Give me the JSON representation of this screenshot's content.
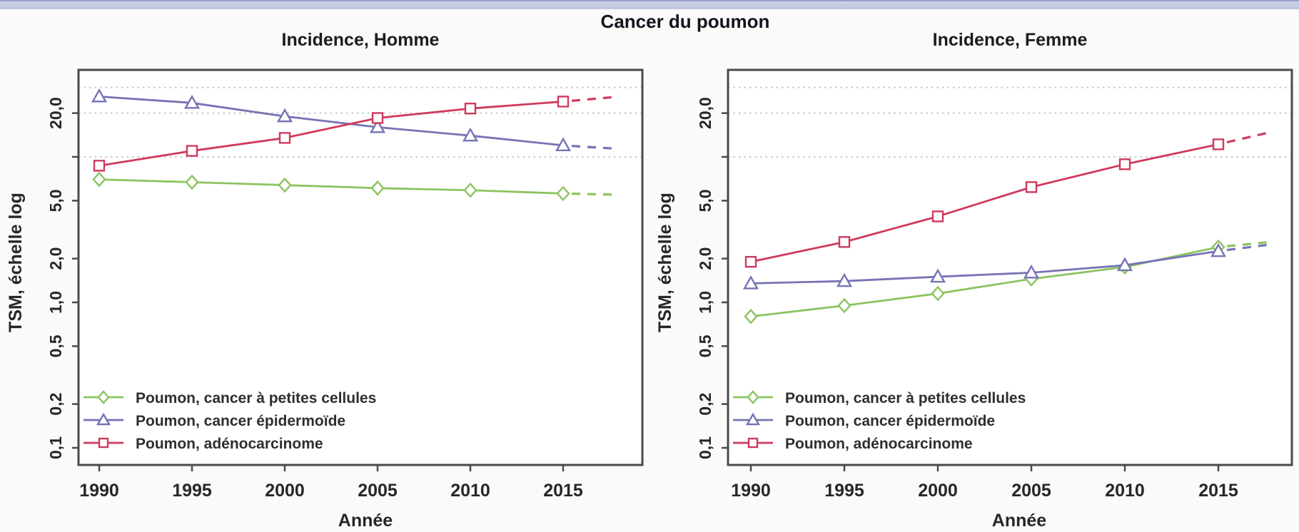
{
  "page": {
    "grand_title": "Cancer du poumon",
    "background_color": "#fbfaf8",
    "top_bar_color": "#c6cbe3"
  },
  "legend": {
    "items": [
      {
        "label": "Poumon, cancer à petites cellules",
        "marker": "diamond",
        "color": "#8bc45f"
      },
      {
        "label": "Poumon, cancer épidermoïde",
        "marker": "triangle",
        "color": "#7673b5"
      },
      {
        "label": "Poumon, adénocarcinome",
        "marker": "square",
        "color": "#cf3a5c"
      }
    ]
  },
  "chart_data": [
    {
      "type": "line",
      "panel": "left",
      "title": "Incidence, Homme",
      "xlabel": "Année",
      "ylabel": "TSM, échelle log",
      "scale": "log-y",
      "grid": "dotted horizontal at 10, 20, 30",
      "legend_position": "bottom-left inside plot",
      "x": [
        1990,
        1995,
        2000,
        2005,
        2010,
        2015
      ],
      "x_tick_labels": [
        "1990",
        "1995",
        "2000",
        "2005",
        "2010",
        "2015"
      ],
      "y_ticks": [
        {
          "v": 20,
          "label": "20,0"
        },
        {
          "v": 10,
          "label": ""
        },
        {
          "v": 5,
          "label": "5,0"
        },
        {
          "v": 2,
          "label": "2,0"
        },
        {
          "v": 1,
          "label": "1,0"
        },
        {
          "v": 0.5,
          "label": "0,5"
        },
        {
          "v": 0.2,
          "label": "0,2"
        },
        {
          "v": 0.1,
          "label": "0,1"
        }
      ],
      "gridlines": [
        30,
        20,
        10
      ],
      "ylim": [
        0.08,
        40
      ],
      "xlim": [
        1988.9,
        2019.3
      ],
      "series": [
        {
          "name": "Poumon, cancer à petites cellules",
          "marker": "diamond",
          "color": "#8bc45f",
          "values": [
            7.0,
            6.7,
            6.4,
            6.1,
            5.9,
            5.6
          ],
          "projection": {
            "year": 2017.8,
            "value": 5.5
          }
        },
        {
          "name": "Poumon, cancer épidermoïde",
          "marker": "triangle",
          "color": "#7673b5",
          "values": [
            26,
            23.5,
            19,
            16,
            14,
            12
          ],
          "projection": {
            "year": 2017.8,
            "value": 11.4
          }
        },
        {
          "name": "Poumon, adénocarcinome",
          "marker": "square",
          "color": "#cf3a5c",
          "values": [
            8.7,
            11,
            13.5,
            18.5,
            21.5,
            24
          ],
          "projection": {
            "year": 2017.8,
            "value": 25.8
          }
        }
      ]
    },
    {
      "type": "line",
      "panel": "right",
      "title": "Incidence, Femme",
      "xlabel": "Année",
      "ylabel": "TSM, échelle log",
      "scale": "log-y",
      "grid": "dotted horizontal at 10, 20, 30",
      "legend_position": "bottom-left inside plot",
      "x": [
        1990,
        1995,
        2000,
        2005,
        2010,
        2015
      ],
      "x_tick_labels": [
        "1990",
        "1995",
        "2000",
        "2005",
        "2010",
        "2015"
      ],
      "y_ticks": [
        {
          "v": 20,
          "label": "20,0"
        },
        {
          "v": 10,
          "label": ""
        },
        {
          "v": 5,
          "label": "5,0"
        },
        {
          "v": 2,
          "label": "2,0"
        },
        {
          "v": 1,
          "label": "1,0"
        },
        {
          "v": 0.5,
          "label": "0,5"
        },
        {
          "v": 0.2,
          "label": "0,2"
        },
        {
          "v": 0.1,
          "label": "0,1"
        }
      ],
      "gridlines": [
        30,
        20,
        10
      ],
      "ylim": [
        0.08,
        40
      ],
      "xlim": [
        1988.9,
        2019.3
      ],
      "series": [
        {
          "name": "Poumon, cancer à petites cellules",
          "marker": "diamond",
          "color": "#8bc45f",
          "values": [
            0.8,
            0.95,
            1.15,
            1.45,
            1.75,
            2.4
          ],
          "projection": {
            "year": 2017.8,
            "value": 2.6
          }
        },
        {
          "name": "Poumon, cancer épidermoïde",
          "marker": "triangle",
          "color": "#7673b5",
          "values": [
            1.35,
            1.4,
            1.5,
            1.6,
            1.8,
            2.25
          ],
          "projection": {
            "year": 2017.8,
            "value": 2.5
          }
        },
        {
          "name": "Poumon, adénocarcinome",
          "marker": "square",
          "color": "#cf3a5c",
          "values": [
            1.9,
            2.6,
            3.9,
            6.2,
            8.9,
            12.2
          ],
          "projection": {
            "year": 2017.8,
            "value": 14.8
          }
        }
      ]
    }
  ]
}
